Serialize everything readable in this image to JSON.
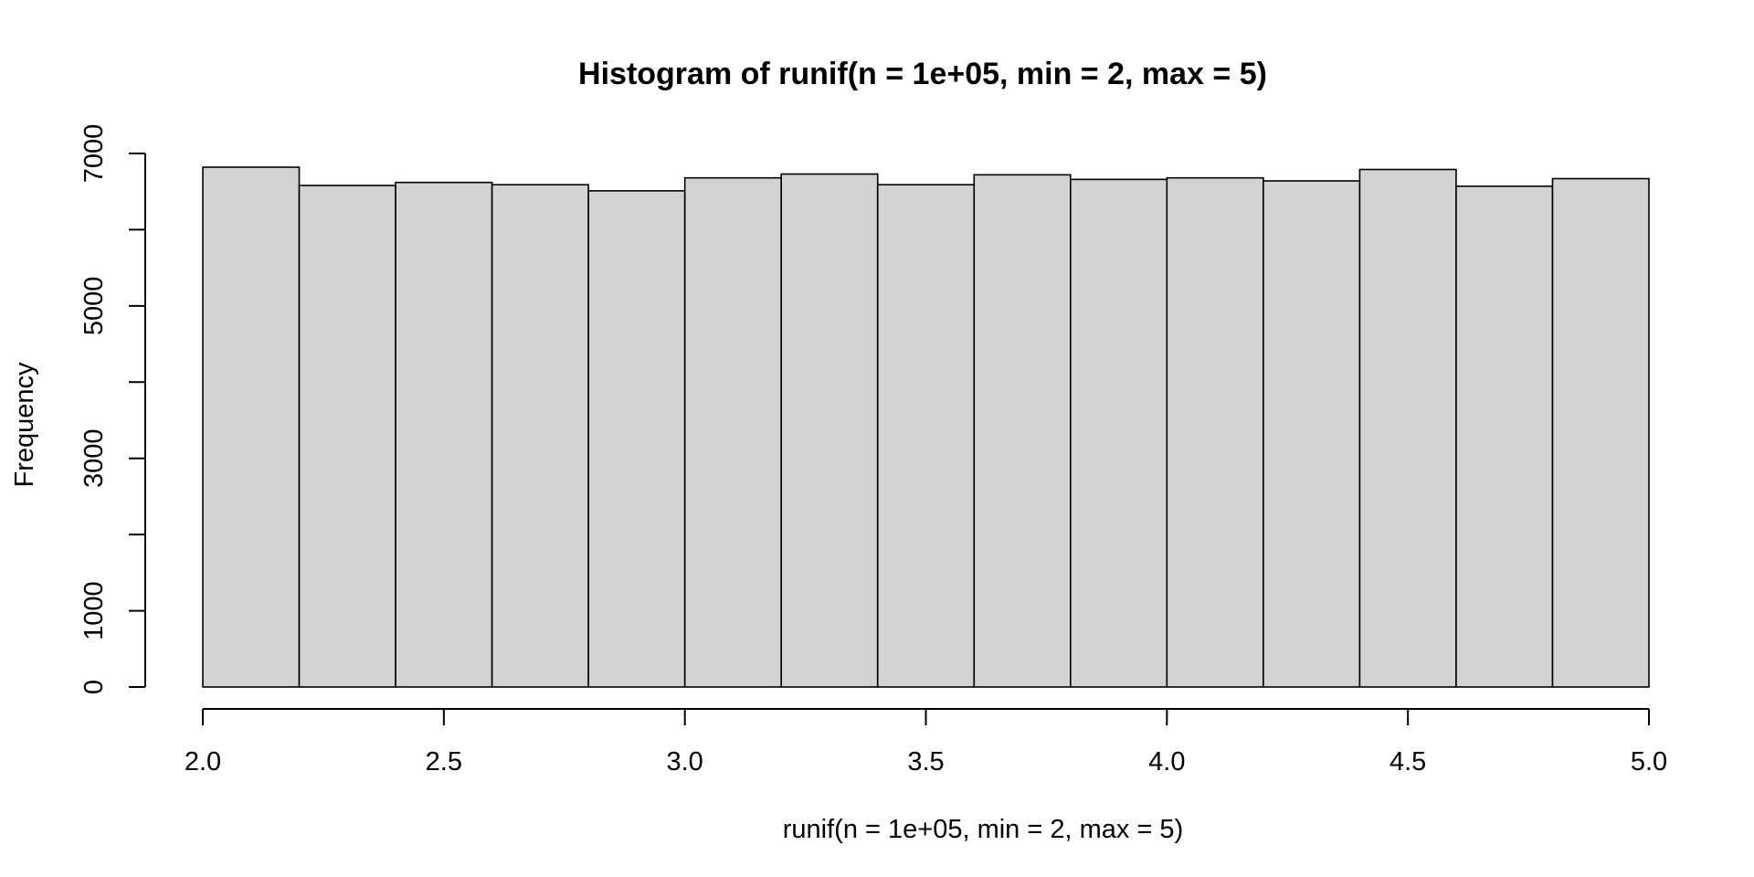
{
  "chart_data": {
    "type": "bar",
    "title": "Histogram of runif(n = 1e+05, min = 2, max = 5)",
    "xlabel": "runif(n = 1e+05, min = 2, max = 5)",
    "ylabel": "Frequency",
    "xlim": [
      2.0,
      5.0
    ],
    "ylim": [
      0,
      7000
    ],
    "bin_edges": [
      2.0,
      2.2,
      2.4,
      2.6,
      2.8,
      3.0,
      3.2,
      3.4,
      3.6,
      3.8,
      4.0,
      4.2,
      4.4,
      4.6,
      4.8,
      5.0
    ],
    "values": [
      6820,
      6580,
      6620,
      6590,
      6510,
      6680,
      6730,
      6590,
      6720,
      6660,
      6680,
      6640,
      6790,
      6570,
      6670
    ],
    "x_ticks": [
      2.0,
      2.5,
      3.0,
      3.5,
      4.0,
      4.5,
      5.0
    ],
    "x_tick_labels": [
      "2.0",
      "2.5",
      "3.0",
      "3.5",
      "4.0",
      "4.5",
      "5.0"
    ],
    "y_ticks": [
      0,
      1000,
      2000,
      3000,
      4000,
      5000,
      6000,
      7000
    ],
    "y_tick_labels": [
      "0",
      "1000",
      "",
      "3000",
      "",
      "5000",
      "",
      "7000"
    ],
    "grid": false,
    "bar_fill": "#d3d3d3",
    "bar_stroke": "#000000"
  }
}
